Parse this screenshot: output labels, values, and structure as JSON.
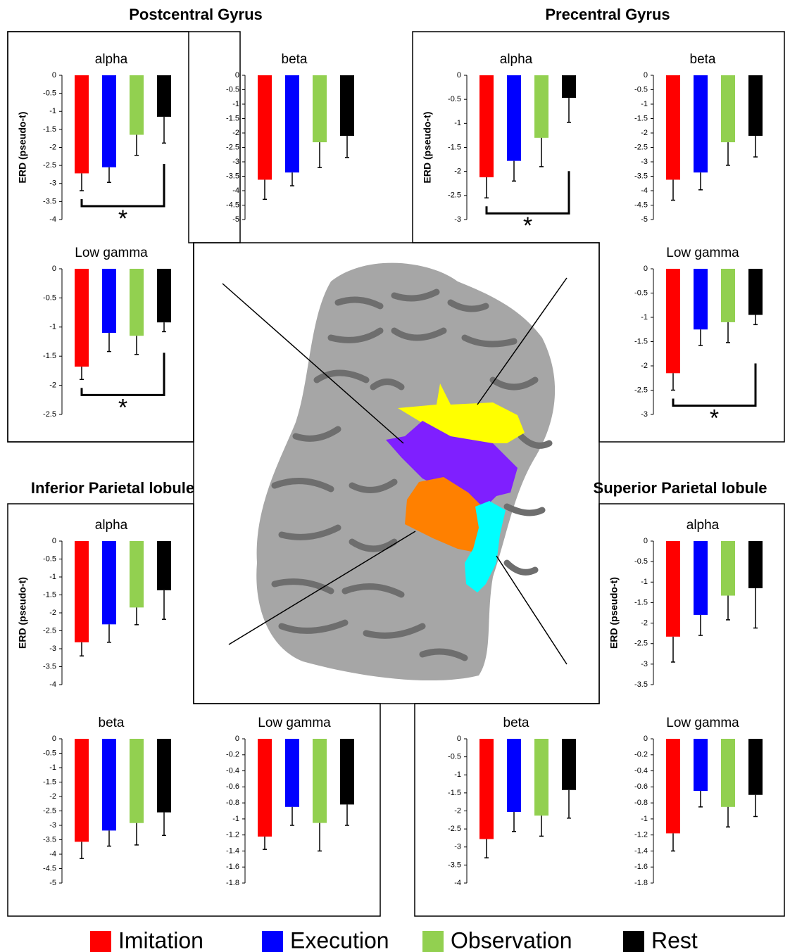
{
  "regions": [
    "Postcentral Gyrus",
    "Precentral Gyrus",
    "Inferior Parietal lobule",
    "Superior Parietal lobule"
  ],
  "legend": [
    {
      "name": "Imitation",
      "color": "#ff0000"
    },
    {
      "name": "Execution",
      "color": "#0000ff"
    },
    {
      "name": "Observation",
      "color": "#92d050"
    },
    {
      "name": "Rest",
      "color": "#000000"
    }
  ],
  "chart_data": [
    {
      "type": "bar",
      "title": "alpha",
      "ylabel": "ERD (pseudo-t)",
      "values": [
        -2.72,
        -2.55,
        -1.65,
        -1.15
      ],
      "errors": [
        0.48,
        0.42,
        0.57,
        0.73
      ],
      "ylim": [
        -4,
        0
      ],
      "yticks": [
        0,
        -0.5,
        -1,
        -1.5,
        -2,
        -2.5,
        -3,
        -3.5,
        -4
      ],
      "annotation": "*"
    },
    {
      "type": "bar",
      "title": "beta",
      "values": [
        -3.62,
        -3.37,
        -2.32,
        -2.1
      ],
      "errors": [
        0.68,
        0.46,
        0.88,
        0.75
      ],
      "ylim": [
        -5,
        0
      ],
      "yticks": [
        0,
        -0.5,
        -1,
        -1.5,
        -2,
        -2.5,
        -3,
        -3.5,
        -4,
        -4.5,
        -5
      ]
    },
    {
      "type": "bar",
      "title": "Low gamma",
      "values": [
        -1.68,
        -1.1,
        -1.15,
        -0.92
      ],
      "errors": [
        0.22,
        0.32,
        0.32,
        0.16
      ],
      "ylim": [
        -2.5,
        0
      ],
      "yticks": [
        0,
        -0.5,
        -1,
        -1.5,
        -2,
        -2.5
      ],
      "annotation": "*"
    },
    {
      "type": "bar",
      "title": "alpha",
      "ylabel": "ERD (pseudo-t)",
      "values": [
        -2.12,
        -1.78,
        -1.3,
        -0.47
      ],
      "errors": [
        0.43,
        0.42,
        0.6,
        0.51
      ],
      "ylim": [
        -3,
        0
      ],
      "yticks": [
        0,
        -0.5,
        -1,
        -1.5,
        -2,
        -2.5,
        -3
      ],
      "annotation": "*"
    },
    {
      "type": "bar",
      "title": "beta",
      "values": [
        -3.62,
        -3.37,
        -2.32,
        -2.1
      ],
      "errors": [
        0.71,
        0.6,
        0.8,
        0.73
      ],
      "ylim": [
        -5,
        0
      ],
      "yticks": [
        0,
        -0.5,
        -1,
        -1.5,
        -2,
        -2.5,
        -3,
        -3.5,
        -4,
        -4.5,
        -5
      ]
    },
    {
      "type": "bar",
      "title": "Low gamma",
      "values": [
        -2.15,
        -1.25,
        -1.1,
        -0.95
      ],
      "errors": [
        0.35,
        0.33,
        0.42,
        0.2
      ],
      "ylim": [
        -3,
        0
      ],
      "yticks": [
        0,
        -0.5,
        -1,
        -1.5,
        -2,
        -2.5,
        -3
      ],
      "annotation": "*"
    },
    {
      "type": "bar",
      "title": "alpha",
      "ylabel": "ERD (pseudo-t)",
      "values": [
        -2.82,
        -2.32,
        -1.85,
        -1.37
      ],
      "errors": [
        0.38,
        0.5,
        0.48,
        0.81
      ],
      "ylim": [
        -4,
        0
      ],
      "yticks": [
        0,
        -0.5,
        -1,
        -1.5,
        -2,
        -2.5,
        -3,
        -3.5,
        -4
      ]
    },
    {
      "type": "bar",
      "title": "beta",
      "values": [
        -3.57,
        -3.18,
        -2.92,
        -2.55
      ],
      "errors": [
        0.58,
        0.54,
        0.76,
        0.8
      ],
      "ylim": [
        -5,
        0
      ],
      "yticks": [
        0,
        -0.5,
        -1,
        -1.5,
        -2,
        -2.5,
        -3,
        -3.5,
        -4,
        -4.5,
        -5
      ]
    },
    {
      "type": "bar",
      "title": "Low gamma",
      "values": [
        -1.22,
        -0.85,
        -1.05,
        -0.82
      ],
      "errors": [
        0.16,
        0.23,
        0.35,
        0.26
      ],
      "ylim": [
        -1.8,
        0
      ],
      "yticks": [
        0,
        -0.2,
        -0.4,
        -0.6,
        -0.8,
        -1,
        -1.2,
        -1.4,
        -1.6,
        -1.8
      ]
    },
    {
      "type": "bar",
      "title": "alpha",
      "ylabel": "ERD (pseudo-t)",
      "values": [
        -2.33,
        -1.8,
        -1.33,
        -1.15
      ],
      "errors": [
        0.62,
        0.5,
        0.59,
        0.97
      ],
      "ylim": [
        -3.5,
        0
      ],
      "yticks": [
        0,
        -0.5,
        -1,
        -1.5,
        -2,
        -2.5,
        -3,
        -3.5
      ]
    },
    {
      "type": "bar",
      "title": "beta",
      "values": [
        -2.78,
        -2.03,
        -2.13,
        -1.42
      ],
      "errors": [
        0.52,
        0.54,
        0.57,
        0.78
      ],
      "ylim": [
        -4,
        0
      ],
      "yticks": [
        0,
        -0.5,
        -1,
        -1.5,
        -2,
        -2.5,
        -3,
        -3.5,
        -4
      ]
    },
    {
      "type": "bar",
      "title": "Low gamma",
      "values": [
        -1.18,
        -0.65,
        -0.85,
        -0.7
      ],
      "errors": [
        0.22,
        0.2,
        0.25,
        0.27
      ],
      "ylim": [
        -1.8,
        0
      ],
      "yticks": [
        0,
        -0.2,
        -0.4,
        -0.6,
        -0.8,
        -1,
        -1.2,
        -1.4,
        -1.6,
        -1.8
      ]
    }
  ]
}
